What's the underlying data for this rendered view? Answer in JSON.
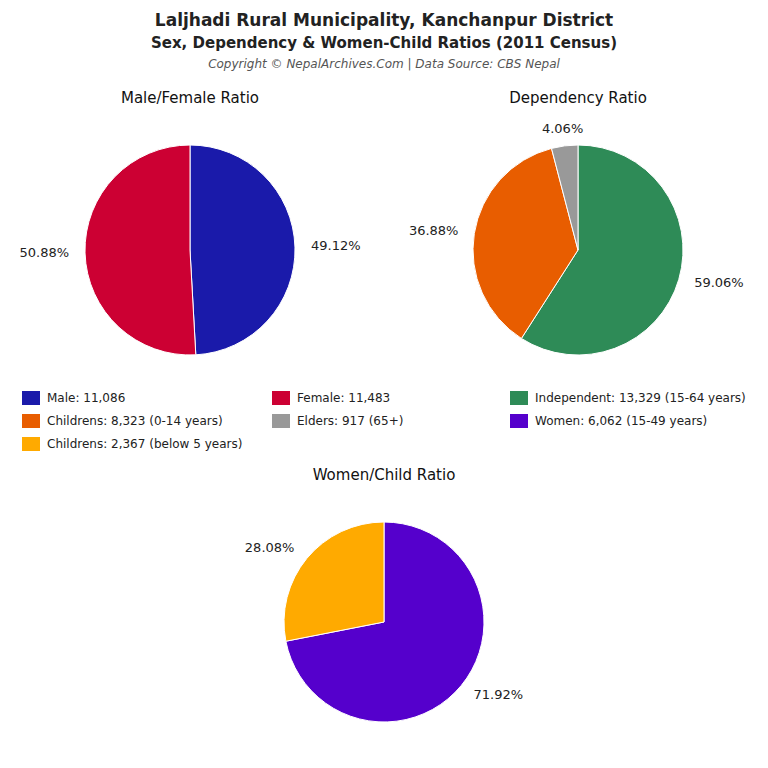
{
  "title": "Laljhadi Rural Municipality, Kanchanpur District",
  "subtitle": "Sex, Dependency & Women-Child Ratios (2011 Census)",
  "annotations": [
    "Copyright © NepalArchives.Com | Data Source: CBS Nepal"
  ],
  "chart_data": [
    {
      "type": "pie",
      "title": "Male/Female Ratio",
      "categories": [
        "Male: 11,086",
        "Female: 11,483"
      ],
      "values": [
        49.12,
        50.88
      ],
      "value_labels": [
        "49.12%",
        "50.88%"
      ],
      "colors": [
        "#1a1aaa",
        "#cc0033"
      ],
      "data_labels": true,
      "legend": "center"
    },
    {
      "type": "pie",
      "title": "Dependency Ratio",
      "categories": [
        "Independent: 13,329 (15-64 years)",
        "Childrens: 8,323 (0-14 years)",
        "Elders: 917 (65+)"
      ],
      "values": [
        59.06,
        36.88,
        4.06
      ],
      "value_labels": [
        "59.06%",
        "36.88%",
        "4.06%"
      ],
      "colors": [
        "#2e8b57",
        "#e85d00",
        "#999999"
      ],
      "data_labels": true,
      "legend": "center"
    },
    {
      "type": "pie",
      "title": "Women/Child Ratio",
      "categories": [
        "Women: 6,062 (15-49 years)",
        "Childrens: 2,367 (below 5 years)"
      ],
      "values": [
        71.92,
        28.08
      ],
      "value_labels": [
        "71.92%",
        "28.08%"
      ],
      "colors": [
        "#5500cc",
        "#ffaa00"
      ],
      "data_labels": true,
      "legend": "center"
    }
  ]
}
